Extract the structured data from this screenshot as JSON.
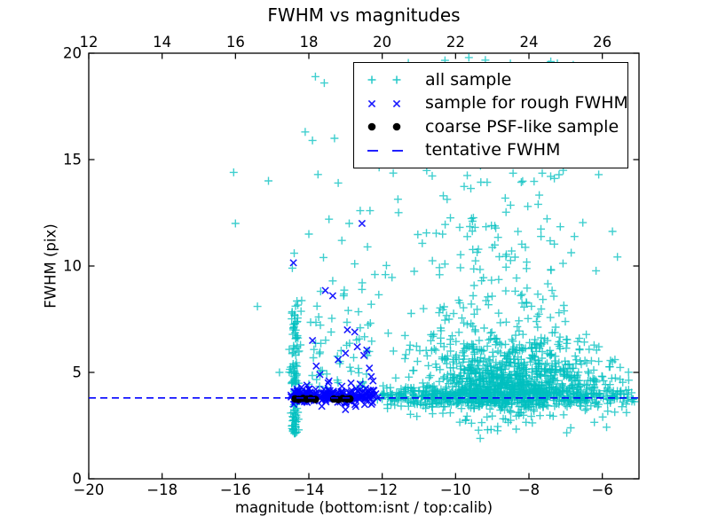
{
  "chart_data": {
    "type": "scatter",
    "title": "FWHM vs magnitudes",
    "xlabel": "magnitude (bottom:isnt / top:calib)",
    "ylabel": "FWHM (pix)",
    "x_bottom": {
      "label_side": "bottom",
      "range": [
        -20,
        -5
      ],
      "ticks": [
        -20,
        -18,
        -16,
        -14,
        -12,
        -10,
        -8,
        -6
      ]
    },
    "x_top": {
      "label_side": "top",
      "range": [
        12,
        27
      ],
      "ticks": [
        12,
        14,
        16,
        18,
        20,
        22,
        24,
        26
      ]
    },
    "y": {
      "range": [
        0,
        20
      ],
      "ticks": [
        0,
        5,
        10,
        15,
        20
      ]
    },
    "grid": false,
    "legend_position": "upper right",
    "tentative_fwhm_value": 3.8,
    "seed": 7,
    "colors": {
      "all_sample": "#00bfbf",
      "rough_sample": "#0000ff",
      "psf_sample": "#000000",
      "tentative_line": "#0000ff",
      "axis": "#000000",
      "background": "#ffffff"
    },
    "series": [
      {
        "name": "all sample",
        "marker": "plus",
        "color": "#00bfbf",
        "opacity": 0.75,
        "clusters": [
          {
            "n": 620,
            "mag": [
              "normal",
              -8.8,
              1.9
            ],
            "fwhm": [
              "normal",
              3.85,
              0.22
            ],
            "mag_clip": [
              -12.15,
              -5.1
            ]
          },
          {
            "n": 720,
            "mag": [
              "normal",
              -8.4,
              1.3
            ],
            "fwhm": [
              "halfup",
              3.95,
              1.2
            ],
            "mag_clip": [
              -11.9,
              -5.25
            ],
            "fwhm_clip": [
              0.3,
              12.5
            ]
          },
          {
            "n": 230,
            "mag": [
              "normal",
              -9.2,
              1.5
            ],
            "fwhm": [
              "powup",
              6,
              15.5,
              1.5
            ],
            "mag_clip": [
              -13.1,
              -5.4
            ]
          },
          {
            "n": 65,
            "mag": [
              "normal",
              -8.9,
              1.3
            ],
            "fwhm": [
              "uniform",
              15.5,
              19.9
            ],
            "mag_clip": [
              -12.3,
              -6.3
            ]
          },
          {
            "n": 115,
            "mag": [
              "normal",
              -14.38,
              0.06
            ],
            "fwhm": [
              "powup",
              2.1,
              8.4,
              1.25
            ]
          },
          {
            "n": 85,
            "mag": [
              "normal",
              -8.6,
              1.6
            ],
            "fwhm": [
              "halfdown",
              3.6,
              0.75
            ],
            "mag_clip": [
              -12.4,
              -5.25
            ],
            "fwhm_clip": [
              1.85,
              3.8
            ]
          },
          {
            "n": 14,
            "mag": [
              "uniform",
              -6.0,
              -5.1
            ],
            "fwhm": [
              "normal",
              3.9,
              0.45
            ]
          },
          {
            "n": 55,
            "mag": [
              "uniform",
              -14.25,
              -12.35
            ],
            "fwhm": [
              "powup",
              4.2,
              9.5,
              1.5
            ]
          }
        ],
        "points": [
          [
            -16.05,
            14.4
          ],
          [
            -16.0,
            12.0
          ],
          [
            -15.4,
            8.1
          ],
          [
            -15.1,
            14.0
          ],
          [
            -14.8,
            5.0
          ],
          [
            -13.82,
            18.9
          ],
          [
            -13.58,
            18.6
          ],
          [
            -14.1,
            16.3
          ],
          [
            -13.9,
            15.9
          ],
          [
            -13.3,
            16.0
          ],
          [
            -13.75,
            14.3
          ],
          [
            -13.2,
            13.9
          ],
          [
            -12.6,
            12.6
          ],
          [
            -13.45,
            12.2
          ],
          [
            -12.9,
            12.0
          ],
          [
            -14.0,
            11.5
          ],
          [
            -13.1,
            11.2
          ],
          [
            -12.4,
            10.9
          ],
          [
            -13.6,
            10.4
          ],
          [
            -12.75,
            10.1
          ],
          [
            -12.2,
            9.6
          ],
          [
            -13.35,
            9.3
          ],
          [
            -12.55,
            8.9
          ],
          [
            -13.05,
            8.6
          ],
          [
            -12.3,
            8.2
          ],
          [
            -14.45,
            9.9
          ],
          [
            -14.4,
            10.6
          ]
        ]
      },
      {
        "name": "sample for rough FWHM",
        "marker": "x",
        "color": "#0000ff",
        "opacity": 0.9,
        "clusters": [
          {
            "n": 110,
            "mag": [
              "uniform",
              -14.52,
              -13.2
            ],
            "fwhm": [
              "normal",
              3.88,
              0.16
            ]
          },
          {
            "n": 75,
            "mag": [
              "uniform",
              -13.2,
              -12.12
            ],
            "fwhm": [
              "normal",
              3.9,
              0.17
            ]
          }
        ],
        "points": [
          [
            -14.42,
            10.15
          ],
          [
            -12.55,
            12.0
          ],
          [
            -13.9,
            6.5
          ],
          [
            -13.55,
            8.85
          ],
          [
            -13.35,
            8.6
          ],
          [
            -12.95,
            7.0
          ],
          [
            -12.75,
            6.9
          ],
          [
            -12.68,
            6.2
          ],
          [
            -13.0,
            5.9
          ],
          [
            -13.2,
            5.6
          ],
          [
            -12.5,
            5.8
          ],
          [
            -12.42,
            6.05
          ],
          [
            -12.35,
            5.2
          ],
          [
            -13.7,
            4.9
          ],
          [
            -13.45,
            4.6
          ],
          [
            -12.85,
            4.5
          ],
          [
            -14.05,
            4.4
          ],
          [
            -12.3,
            4.8
          ],
          [
            -12.6,
            4.45
          ],
          [
            -13.1,
            4.35
          ],
          [
            -14.2,
            4.3
          ],
          [
            -12.45,
            4.25
          ],
          [
            -12.25,
            4.6
          ],
          [
            -13.8,
            5.3
          ],
          [
            -13.0,
            3.25
          ],
          [
            -12.72,
            3.4
          ]
        ]
      },
      {
        "name": "coarse PSF-like sample",
        "marker": "dot",
        "color": "#000000",
        "opacity": 1,
        "points": [
          [
            -14.38,
            3.76
          ],
          [
            -14.28,
            3.73
          ],
          [
            -14.16,
            3.78
          ],
          [
            -14.05,
            3.74
          ],
          [
            -13.95,
            3.77
          ],
          [
            -13.82,
            3.73
          ],
          [
            -13.32,
            3.75
          ],
          [
            -13.2,
            3.72
          ],
          [
            -13.08,
            3.77
          ],
          [
            -12.95,
            3.74
          ],
          [
            -12.88,
            3.76
          ]
        ]
      },
      {
        "name": "tentative FWHM",
        "marker": "dashed-line",
        "color": "#0000ff",
        "y": 3.8
      }
    ]
  }
}
